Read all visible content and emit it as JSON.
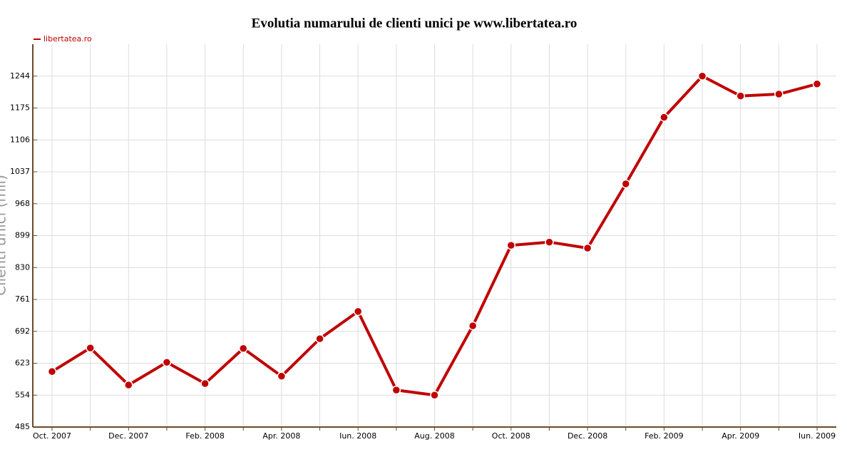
{
  "chart_data": {
    "type": "line",
    "title": "Evolutia numarului de clienti unici pe www.libertatea.ro",
    "y_label": "Clienti unici (mii)",
    "categories": [
      "Oct. 2007",
      null,
      "Dec. 2007",
      null,
      "Feb. 2008",
      null,
      "Apr. 2008",
      null,
      "Iun. 2008",
      null,
      "Aug. 2008",
      null,
      "Oct. 2008",
      null,
      "Dec. 2008",
      null,
      "Feb. 2009",
      null,
      "Apr. 2009",
      null,
      "Iun. 2009"
    ],
    "series": [
      {
        "name": "libertatea.ro",
        "color": "#c00000",
        "values": [
          605,
          656,
          576,
          625,
          579,
          655,
          595,
          676,
          735,
          565,
          554,
          704,
          878,
          885,
          872,
          1011,
          1155,
          1244,
          1201,
          1205,
          1227
        ]
      }
    ],
    "ylim": [
      485,
      1313
    ],
    "yticks": [
      485,
      554,
      623,
      692,
      761,
      830,
      899,
      968,
      1037,
      1106,
      1175,
      1244
    ],
    "grid": true
  }
}
